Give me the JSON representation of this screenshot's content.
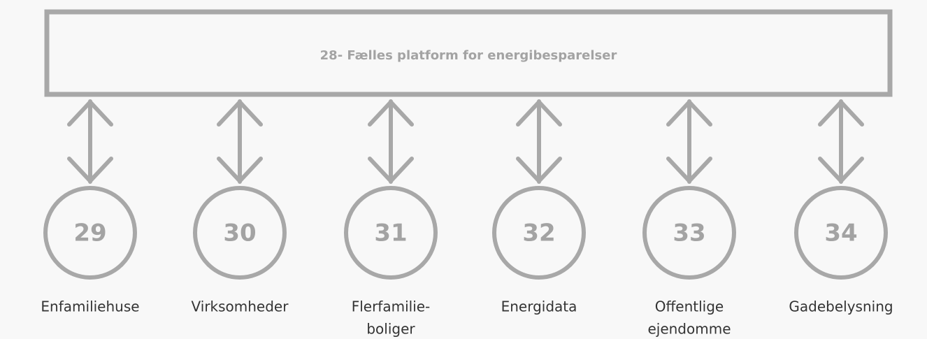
{
  "header": {
    "title": "28- Fælles platform for energibesparelser"
  },
  "nodes": [
    {
      "number": "29",
      "label": [
        "Enfamiliehuse"
      ]
    },
    {
      "number": "30",
      "label": [
        "Virksomheder"
      ]
    },
    {
      "number": "31",
      "label": [
        "Flerfamilie-",
        "boliger"
      ]
    },
    {
      "number": "32",
      "label": [
        "Energidata"
      ]
    },
    {
      "number": "33",
      "label": [
        "Offentlige",
        "ejendomme"
      ]
    },
    {
      "number": "34",
      "label": [
        "Gadebelysning"
      ]
    }
  ]
}
